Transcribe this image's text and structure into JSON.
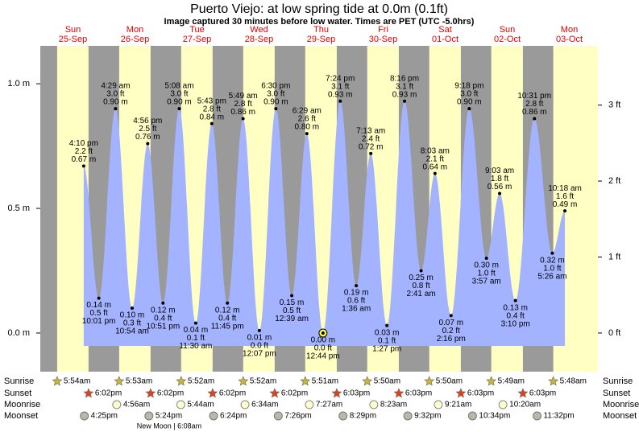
{
  "chart_data": {
    "type": "area",
    "title": "Puerto Viejo: at low  spring tide at 0.0m (0.1ft)",
    "subtitle": "Image captured 30 minutes before low water. Times are PET (UTC -5.0hrs)",
    "days": [
      {
        "weekday": "Sun",
        "date": "25-Sep"
      },
      {
        "weekday": "Mon",
        "date": "26-Sep"
      },
      {
        "weekday": "Tue",
        "date": "27-Sep"
      },
      {
        "weekday": "Wed",
        "date": "28-Sep"
      },
      {
        "weekday": "Thu",
        "date": "29-Sep"
      },
      {
        "weekday": "Fri",
        "date": "30-Sep"
      },
      {
        "weekday": "Sat",
        "date": "01-Oct"
      },
      {
        "weekday": "Sun",
        "date": "02-Oct"
      },
      {
        "weekday": "Mon",
        "date": "03-Oct"
      }
    ],
    "ylim": [
      -0.155,
      1.152
    ],
    "yticks": [
      {
        "value": 0,
        "label": "0.0 m"
      },
      {
        "value": 0.5,
        "label": "0.5 m"
      },
      {
        "value": 1,
        "label": "1.0 m"
      }
    ],
    "y2lim": [
      -0.509,
      3.78
    ],
    "y2ticks": [
      {
        "value": 0,
        "label": "0 ft"
      },
      {
        "value": 1,
        "label": "1 ft"
      },
      {
        "value": 2,
        "label": "2 ft"
      },
      {
        "value": 3,
        "label": "3 ft"
      }
    ],
    "color": "#a3b3ff",
    "tides": {
      "times": [
        "4:10 pm",
        "10:01 pm",
        "4:29 am",
        "10:54 am",
        "4:56 pm",
        "10:51 pm",
        "5:08 am",
        "11:30 am",
        "5:43 pm",
        "11:45 pm",
        "5:49 am",
        "12:07 pm",
        "6:30 pm",
        "12:39 am",
        "6:29 am",
        "12:44 pm",
        "7:24 pm",
        "1:36 am",
        "7:13 am",
        "1:27 pm",
        "8:16 pm",
        "2:41 am",
        "8:03 am",
        "2:16 pm",
        "9:18 pm",
        "3:57 am",
        "9:03 am",
        "3:10 pm",
        "10:31 pm",
        "5:26 am",
        "10:18 am"
      ],
      "values": [
        0.67,
        0.14,
        0.9,
        0.1,
        0.76,
        0.12,
        0.9,
        0.04,
        0.84,
        0.12,
        0.86,
        0.01,
        0.9,
        0.15,
        0.8,
        0.0,
        0.93,
        0.19,
        0.72,
        0.03,
        0.93,
        0.25,
        0.64,
        0.07,
        0.9,
        0.3,
        0.56,
        0.13,
        0.86,
        0.32,
        0.49
      ],
      "value_labels": [
        "0.67 m",
        "0.14 m",
        "0.90 m",
        "0.10 m",
        "0.76 m",
        "0.12 m",
        "0.90 m",
        "0.04 m",
        "0.84 m",
        "0.12 m",
        "0.86 m",
        "0.01 m",
        "0.90 m",
        "0.15 m",
        "0.80 m",
        "0.00 m",
        "0.93 m",
        "0.19 m",
        "0.72 m",
        "0.03 m",
        "0.93 m",
        "0.25 m",
        "0.64 m",
        "0.07 m",
        "0.90 m",
        "0.30 m",
        "0.56 m",
        "0.13 m",
        "0.86 m",
        "0.32 m",
        "0.49 m"
      ],
      "ft_labels": [
        "2.2 ft",
        "0.5 ft",
        "3.0 ft",
        "0.3 ft",
        "2.5 ft",
        "0.4 ft",
        "3.0 ft",
        "0.1 ft",
        "2.8 ft",
        "0.4 ft",
        "2.8 ft",
        "0.0 ft",
        "3.0 ft",
        "0.5 ft",
        "2.6 ft",
        "0.0 ft",
        "3.1 ft",
        "0.6 ft",
        "2.4 ft",
        "0.1 ft",
        "3.1 ft",
        "0.8 ft",
        "2.1 ft",
        "0.2 ft",
        "3.0 ft",
        "1.0 ft",
        "1.8 ft",
        "0.4 ft",
        "2.8 ft",
        "1.0 ft",
        "1.6 ft"
      ]
    },
    "events": [
      {
        "label": "Sunrise",
        "icon": "sunrise",
        "times": [
          "5:54am",
          "5:53am",
          "5:52am",
          "5:52am",
          "5:51am",
          "5:50am",
          "5:50am",
          "5:49am",
          "5:48am"
        ]
      },
      {
        "label": "Sunset",
        "icon": "sunset",
        "times": [
          "6:02pm",
          "6:02pm",
          "6:02pm",
          "6:02pm",
          "6:03pm",
          "6:03pm",
          "6:03pm",
          "6:03pm",
          null
        ]
      },
      {
        "label": "Moonrise",
        "icon": "moonrise",
        "times": [
          null,
          "4:56am",
          "5:44am",
          "6:34am",
          "7:27am",
          "8:23am",
          "9:21am",
          "10:20am",
          null
        ]
      },
      {
        "label": "Moonset",
        "icon": "moonset",
        "times": [
          "4:25pm",
          "5:24pm",
          "6:24pm",
          "7:26pm",
          "8:29pm",
          "9:32pm",
          "10:34pm",
          "11:32pm",
          null
        ]
      }
    ],
    "moon_phase": "New Moon | 6:08am"
  }
}
